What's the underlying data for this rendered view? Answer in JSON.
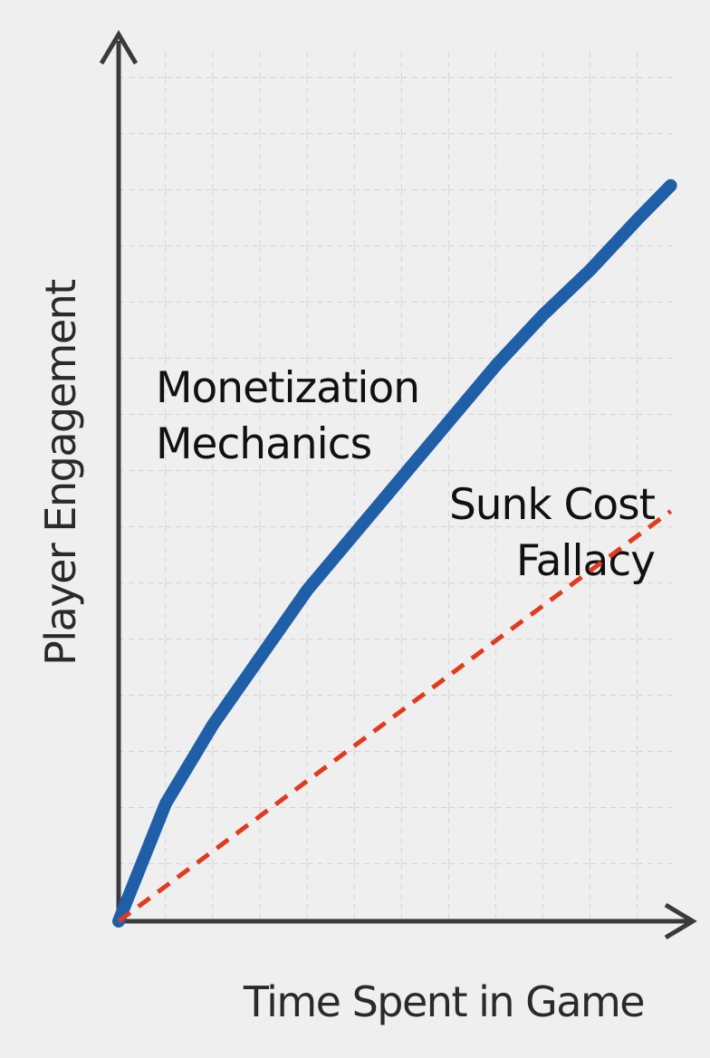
{
  "chart_data": {
    "type": "line",
    "x_label": "Time Spent in Game",
    "y_label": "Player Engagement",
    "xlim": [
      0,
      12
    ],
    "ylim": [
      0,
      16
    ],
    "grid": true,
    "series": [
      {
        "name": "Monetization Mechanics",
        "color": "#1f5fa8",
        "style": "solid",
        "x": [
          0,
          1,
          2,
          3,
          4,
          5,
          6,
          7,
          8,
          9,
          10,
          11,
          11.7
        ],
        "values": [
          0,
          2.1,
          3.5,
          4.7,
          5.9,
          6.9,
          7.9,
          8.9,
          9.9,
          10.8,
          11.6,
          12.5,
          13.1
        ]
      },
      {
        "name": "Sunk Cost Fallacy",
        "color": "#e23a1e",
        "style": "dashed",
        "x": [
          0,
          4,
          8,
          11.7
        ],
        "values": [
          0,
          2.5,
          5.0,
          7.3
        ]
      }
    ]
  }
}
